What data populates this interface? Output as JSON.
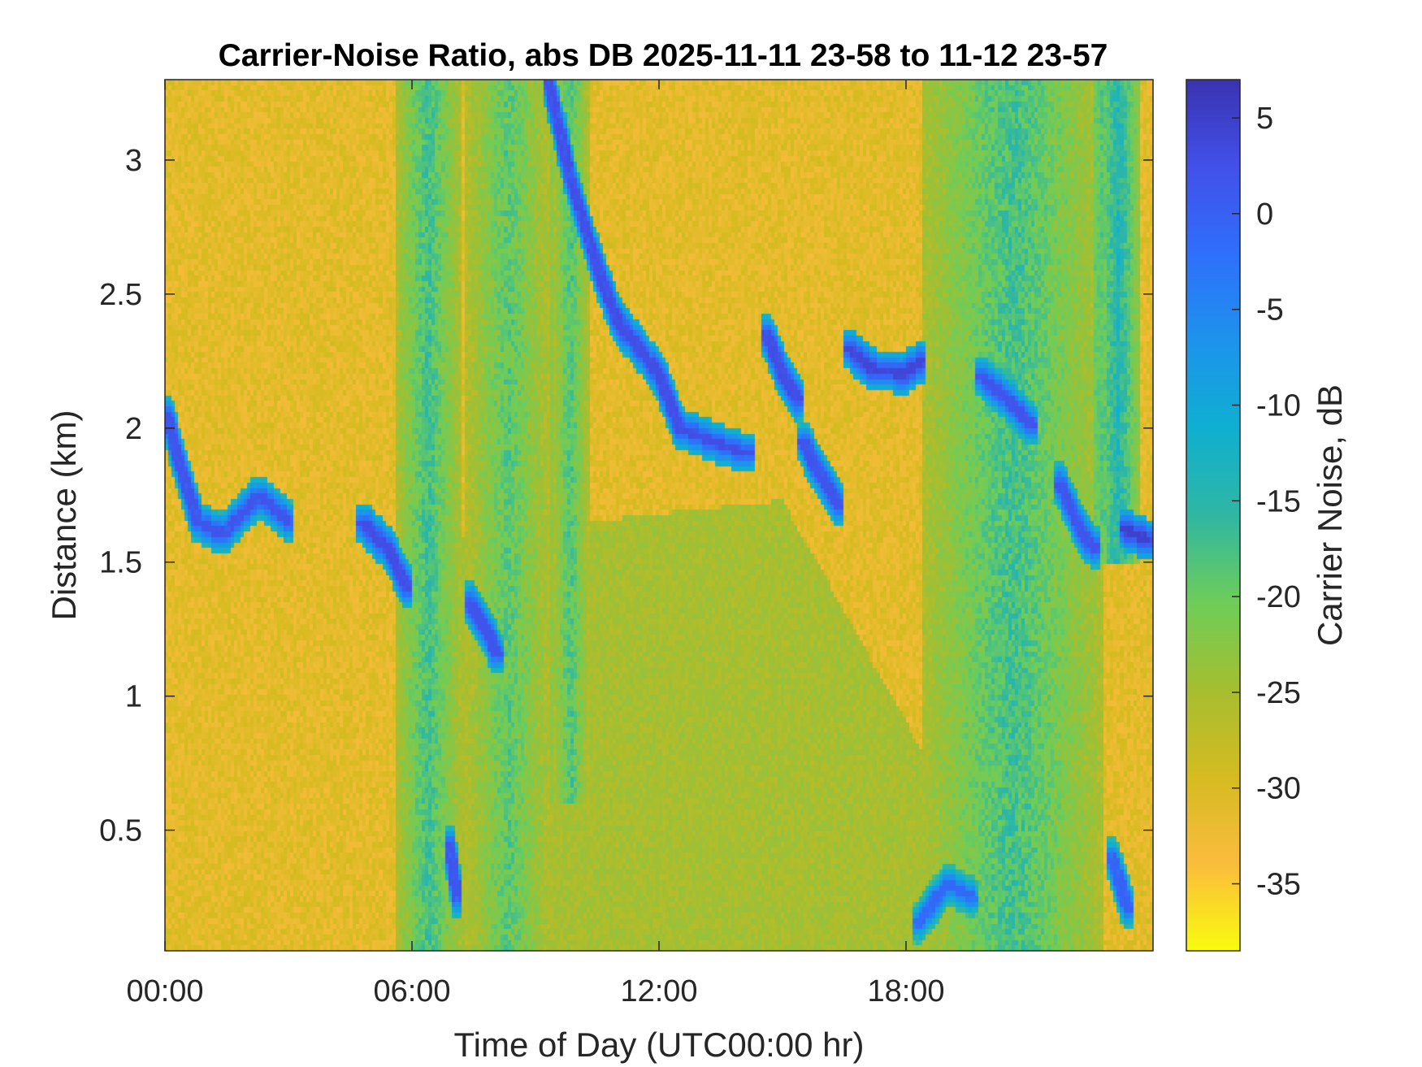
{
  "chart_data": {
    "type": "heatmap",
    "title": "Carrier-Noise Ratio, abs DB 2025-11-11 23-58 to 11-12 23-57",
    "xlabel": "Time of Day (UTC00:00 hr)",
    "ylabel": "Distance (km)",
    "colorbar_label": "Carrier Noise, dB",
    "xlim": [
      0,
      24
    ],
    "ylim": [
      0.05,
      3.3
    ],
    "clim": [
      -38.5,
      7
    ],
    "x_ticks": [
      {
        "value": 0,
        "label": "00:00"
      },
      {
        "value": 6,
        "label": "06:00"
      },
      {
        "value": 12,
        "label": "12:00"
      },
      {
        "value": 18,
        "label": "18:00"
      }
    ],
    "y_ticks": [
      {
        "value": 0.5,
        "label": "0.5"
      },
      {
        "value": 1,
        "label": "1"
      },
      {
        "value": 1.5,
        "label": "1.5"
      },
      {
        "value": 2,
        "label": "2"
      },
      {
        "value": 2.5,
        "label": "2.5"
      },
      {
        "value": 3,
        "label": "3"
      }
    ],
    "colorbar_ticks": [
      {
        "value": 5,
        "label": "5"
      },
      {
        "value": 0,
        "label": "0"
      },
      {
        "value": -5,
        "label": "-5"
      },
      {
        "value": -10,
        "label": "-10"
      },
      {
        "value": -15,
        "label": "-15"
      },
      {
        "value": -20,
        "label": "-20"
      },
      {
        "value": -25,
        "label": "-25"
      },
      {
        "value": -30,
        "label": "-30"
      },
      {
        "value": -35,
        "label": "-35"
      }
    ],
    "colormap": [
      "#f9fb0e",
      "#fbbc3d",
      "#d5bb21",
      "#a5be30",
      "#6ecd59",
      "#2fb7a3",
      "#0fafd1",
      "#1d93ec",
      "#2f6ffb",
      "#4250e9",
      "#3a33b0"
    ],
    "background_level": -31,
    "features": [
      {
        "kind": "band",
        "x": [
          5.6,
          7.2
        ],
        "y": [
          0.05,
          3.3
        ],
        "level": -17
      },
      {
        "kind": "band",
        "x": [
          7.3,
          9.4
        ],
        "y": [
          0.05,
          3.3
        ],
        "level": -19
      },
      {
        "kind": "band",
        "x": [
          9.4,
          10.3
        ],
        "y": [
          0.6,
          3.3
        ],
        "level": -18
      },
      {
        "kind": "band",
        "x": [
          18.4,
          22.8
        ],
        "y": [
          0.05,
          3.3
        ],
        "level": -17
      },
      {
        "kind": "band",
        "x": [
          22.6,
          23.7
        ],
        "y": [
          1.5,
          3.3
        ],
        "level": -14
      },
      {
        "kind": "wedge",
        "x": [
          7.2,
          19.2
        ],
        "y_top": [
          1.6,
          1.8
        ],
        "level": -25
      },
      {
        "kind": "streak",
        "points": [
          [
            9.3,
            3.3
          ],
          [
            9.9,
            2.9
          ],
          [
            10.5,
            2.6
          ],
          [
            11.0,
            2.4
          ],
          [
            11.5,
            2.3
          ],
          [
            12.0,
            2.2
          ],
          [
            12.5,
            2.0
          ],
          [
            13.3,
            1.95
          ],
          [
            14.2,
            1.9
          ]
        ],
        "level": 1
      },
      {
        "kind": "streak",
        "points": [
          [
            14.6,
            2.35
          ],
          [
            15.0,
            2.2
          ],
          [
            15.4,
            2.1
          ]
        ],
        "level": 1
      },
      {
        "kind": "streak",
        "points": [
          [
            15.5,
            1.95
          ],
          [
            16.0,
            1.8
          ],
          [
            16.4,
            1.7
          ]
        ],
        "level": 0
      },
      {
        "kind": "streak",
        "points": [
          [
            16.6,
            2.3
          ],
          [
            17.2,
            2.22
          ],
          [
            17.9,
            2.2
          ],
          [
            18.4,
            2.25
          ]
        ],
        "level": 2
      },
      {
        "kind": "streak",
        "points": [
          [
            0.05,
            2.05
          ],
          [
            0.3,
            1.9
          ],
          [
            0.8,
            1.65
          ],
          [
            1.4,
            1.6
          ],
          [
            2.3,
            1.75
          ],
          [
            3.0,
            1.65
          ]
        ],
        "level": 0
      },
      {
        "kind": "streak",
        "points": [
          [
            4.8,
            1.65
          ],
          [
            5.4,
            1.55
          ],
          [
            5.9,
            1.4
          ]
        ],
        "level": 1
      },
      {
        "kind": "streak",
        "points": [
          [
            7.4,
            1.35
          ],
          [
            7.8,
            1.25
          ],
          [
            8.1,
            1.15
          ]
        ],
        "level": 0
      },
      {
        "kind": "streak",
        "points": [
          [
            21.7,
            1.8
          ],
          [
            22.3,
            1.6
          ],
          [
            22.6,
            1.55
          ]
        ],
        "level": 0
      },
      {
        "kind": "streak",
        "points": [
          [
            23.3,
            1.62
          ],
          [
            23.9,
            1.58
          ]
        ],
        "level": 3
      },
      {
        "kind": "streak",
        "points": [
          [
            18.3,
            0.15
          ],
          [
            19.0,
            0.3
          ],
          [
            19.6,
            0.25
          ]
        ],
        "level": -3
      },
      {
        "kind": "streak",
        "points": [
          [
            19.8,
            2.2
          ],
          [
            20.5,
            2.1
          ],
          [
            21.1,
            2.0
          ]
        ],
        "level": 0
      },
      {
        "kind": "streak",
        "points": [
          [
            6.9,
            0.45
          ],
          [
            7.1,
            0.25
          ]
        ],
        "level": 0
      },
      {
        "kind": "streak",
        "points": [
          [
            23.0,
            0.4
          ],
          [
            23.4,
            0.2
          ]
        ],
        "level": -2
      }
    ]
  }
}
